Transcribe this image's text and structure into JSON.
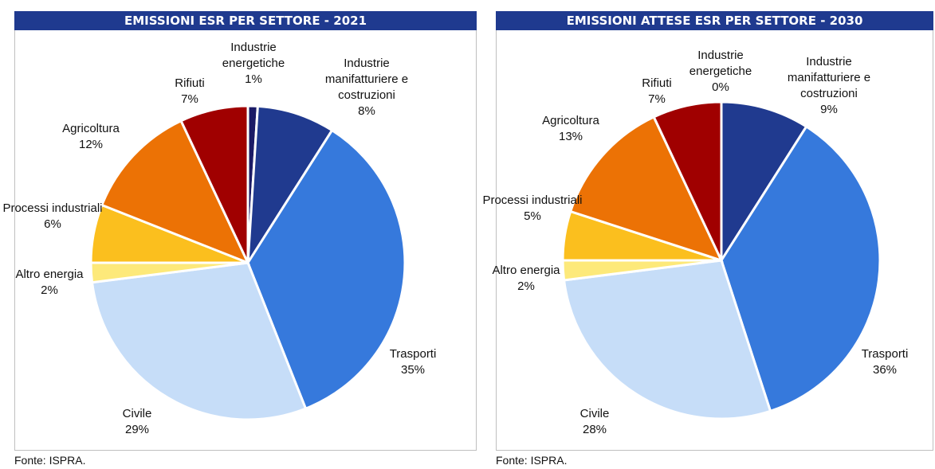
{
  "chart_data": [
    {
      "type": "pie",
      "title": "EMISSIONI ESR PER SETTORE - 2021",
      "categories": [
        "Industrie energetiche",
        "Industrie manifatturiere e costruzioni",
        "Trasporti",
        "Civile",
        "Altro energia",
        "Processi industriali",
        "Agricoltura",
        "Rifiuti"
      ],
      "values": [
        1,
        8,
        35,
        29,
        2,
        6,
        12,
        7
      ],
      "value_labels": [
        "1%",
        "8%",
        "35%",
        "29%",
        "2%",
        "6%",
        "12%",
        "7%"
      ],
      "colors": [
        "#1b1b66",
        "#203a8f",
        "#3679dc",
        "#c6ddf8",
        "#fde97a",
        "#fbbf1e",
        "#ec7205",
        "#a00000"
      ],
      "source": "Fonte: ISPRA."
    },
    {
      "type": "pie",
      "title": "EMISSIONI ATTESE ESR PER SETTORE - 2030",
      "categories": [
        "Industrie energetiche",
        "Industrie manifatturiere e costruzioni",
        "Trasporti",
        "Civile",
        "Altro energia",
        "Processi industriali",
        "Agricoltura",
        "Rifiuti"
      ],
      "values": [
        0,
        9,
        36,
        28,
        2,
        5,
        13,
        7
      ],
      "value_labels": [
        "0%",
        "9%",
        "36%",
        "28%",
        "2%",
        "5%",
        "13%",
        "7%"
      ],
      "colors": [
        "#1b1b66",
        "#203a8f",
        "#3679dc",
        "#c6ddf8",
        "#fde97a",
        "#fbbf1e",
        "#ec7205",
        "#a00000"
      ],
      "source": "Fonte: ISPRA."
    }
  ]
}
